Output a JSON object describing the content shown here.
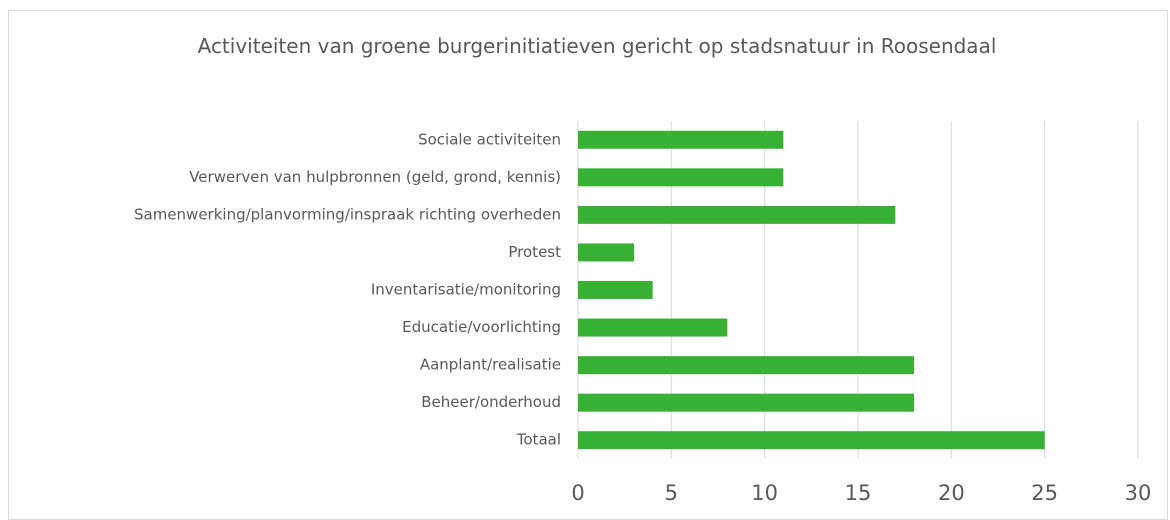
{
  "chart_data": {
    "type": "barh",
    "title": "Activiteiten van groene burgerinitiatieven gericht op stadsnatuur in Roosendaal",
    "categories": [
      "Sociale activiteiten",
      "Verwerven van hulpbronnen (geld, grond, kennis)",
      "Samenwerking/planvorming/inspraak richting overheden",
      "Protest",
      "Inventarisatie/monitoring",
      "Educatie/voorlichting",
      "Aanplant/realisatie",
      "Beheer/onderhoud",
      "Totaal"
    ],
    "values": [
      11,
      11,
      17,
      3,
      4,
      8,
      18,
      18,
      25
    ],
    "color": "#38b034",
    "xlim": [
      0,
      30
    ],
    "xticks": [
      0,
      5,
      10,
      15,
      20,
      25,
      30
    ],
    "grid": true
  }
}
